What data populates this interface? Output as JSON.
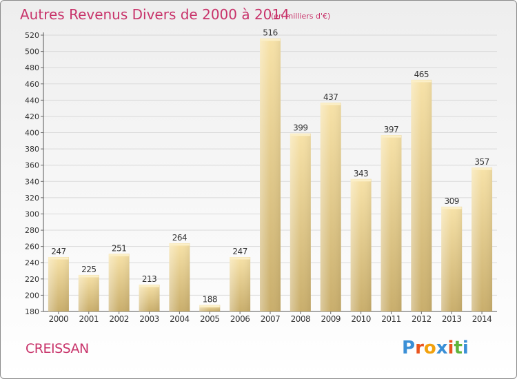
{
  "chart_data": {
    "type": "bar",
    "title": "Autres Revenus Divers de 2000 à 2014",
    "subtitle": "(en milliers d'€)",
    "categories": [
      "2000",
      "2001",
      "2002",
      "2003",
      "2004",
      "2005",
      "2006",
      "2007",
      "2008",
      "2009",
      "2010",
      "2011",
      "2012",
      "2013",
      "2014"
    ],
    "values": [
      247,
      225,
      251,
      213,
      264,
      188,
      247,
      516,
      399,
      437,
      343,
      397,
      465,
      309,
      357
    ],
    "ylim": [
      180,
      520
    ],
    "yticks": [
      180,
      200,
      220,
      240,
      260,
      280,
      300,
      320,
      340,
      360,
      380,
      400,
      420,
      440,
      460,
      480,
      500,
      520
    ],
    "grid": true,
    "xlabel": "",
    "ylabel": ""
  },
  "place": "CREISSAN",
  "logo": {
    "text": "Proxiti",
    "letter_colors": [
      "#3a8fd6",
      "#e9541e",
      "#f2a10d",
      "#3a8fd6",
      "#e9541e",
      "#5fb43c",
      "#3a8fd6"
    ]
  },
  "colors": {
    "title": "#c8336a",
    "bar_light": "#f7e2a8",
    "bar_dark": "#c9ae6c"
  }
}
